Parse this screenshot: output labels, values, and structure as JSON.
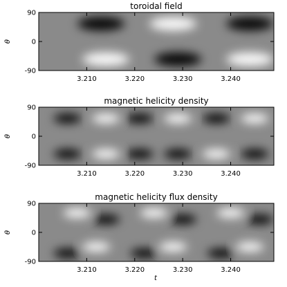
{
  "chart_data": [
    {
      "type": "heatmap",
      "title": "toroidal field",
      "xlabel": "",
      "ylabel": "θ",
      "xlim": [
        3.2,
        3.249
      ],
      "ylim": [
        -90,
        90
      ],
      "xticks": [
        "3.210",
        "3.220",
        "3.230",
        "3.240"
      ],
      "xtick_values": [
        3.21,
        3.22,
        3.23,
        3.24
      ],
      "yticks": [
        "90",
        "0",
        "-90"
      ],
      "ytick_values": [
        90,
        0,
        -90
      ],
      "colormap": "grayscale (black = negative, white = positive)",
      "features": [
        {
          "t": 3.213,
          "theta": 55,
          "sign": "negative"
        },
        {
          "t": 3.228,
          "theta": 55,
          "sign": "positive"
        },
        {
          "t": 3.244,
          "theta": 55,
          "sign": "negative"
        },
        {
          "t": 3.214,
          "theta": -55,
          "sign": "positive"
        },
        {
          "t": 3.229,
          "theta": -55,
          "sign": "negative"
        },
        {
          "t": 3.244,
          "theta": -55,
          "sign": "positive"
        }
      ]
    },
    {
      "type": "heatmap",
      "title": "magnetic helicity density",
      "xlabel": "",
      "ylabel": "θ",
      "xlim": [
        3.2,
        3.249
      ],
      "ylim": [
        -90,
        90
      ],
      "xticks": [
        "3.210",
        "3.220",
        "3.230",
        "3.240"
      ],
      "xtick_values": [
        3.21,
        3.22,
        3.23,
        3.24
      ],
      "yticks": [
        "90",
        "0",
        "-90"
      ],
      "ytick_values": [
        90,
        0,
        -90
      ],
      "colormap": "grayscale (black = negative, white = positive)",
      "features": [
        {
          "t": 3.206,
          "theta": 55,
          "sign": "negative"
        },
        {
          "t": 3.214,
          "theta": 55,
          "sign": "positive"
        },
        {
          "t": 3.221,
          "theta": 55,
          "sign": "negative"
        },
        {
          "t": 3.229,
          "theta": 55,
          "sign": "positive"
        },
        {
          "t": 3.237,
          "theta": 55,
          "sign": "negative"
        },
        {
          "t": 3.245,
          "theta": 55,
          "sign": "positive"
        },
        {
          "t": 3.206,
          "theta": -55,
          "sign": "negative"
        },
        {
          "t": 3.214,
          "theta": -55,
          "sign": "positive"
        },
        {
          "t": 3.221,
          "theta": -55,
          "sign": "negative"
        },
        {
          "t": 3.229,
          "theta": -55,
          "sign": "negative"
        },
        {
          "t": 3.237,
          "theta": -55,
          "sign": "positive"
        },
        {
          "t": 3.245,
          "theta": -55,
          "sign": "negative"
        }
      ]
    },
    {
      "type": "heatmap",
      "title": "magnetic helicity flux density",
      "xlabel": "t",
      "ylabel": "θ",
      "xlim": [
        3.2,
        3.249
      ],
      "ylim": [
        -90,
        90
      ],
      "xticks": [
        "3.210",
        "3.220",
        "3.230",
        "3.240"
      ],
      "xtick_values": [
        3.21,
        3.22,
        3.23,
        3.24
      ],
      "yticks": [
        "90",
        "0",
        "-90"
      ],
      "ytick_values": [
        90,
        0,
        -90
      ],
      "colormap": "grayscale (black = negative, white = positive)",
      "features": [
        {
          "t": 3.208,
          "theta": 60,
          "sign": "positive"
        },
        {
          "t": 3.214,
          "theta": 40,
          "sign": "negative"
        },
        {
          "t": 3.224,
          "theta": 60,
          "sign": "positive"
        },
        {
          "t": 3.23,
          "theta": 40,
          "sign": "negative"
        },
        {
          "t": 3.24,
          "theta": 60,
          "sign": "positive"
        },
        {
          "t": 3.246,
          "theta": 40,
          "sign": "negative"
        },
        {
          "t": 3.206,
          "theta": -65,
          "sign": "negative"
        },
        {
          "t": 3.212,
          "theta": -45,
          "sign": "positive"
        },
        {
          "t": 3.222,
          "theta": -65,
          "sign": "negative"
        },
        {
          "t": 3.228,
          "theta": -45,
          "sign": "positive"
        },
        {
          "t": 3.238,
          "theta": -65,
          "sign": "negative"
        },
        {
          "t": 3.244,
          "theta": -45,
          "sign": "positive"
        }
      ]
    }
  ]
}
